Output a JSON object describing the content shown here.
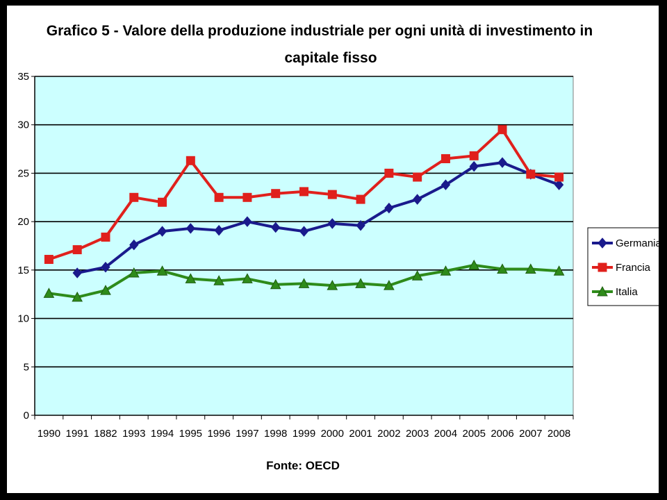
{
  "chart_data": {
    "type": "line",
    "title_line1": "Grafico 5 - Valore della produzione industriale per ogni unità di investimento in",
    "title_line2": "capitale fisso",
    "source": "Fonte: OECD",
    "categories": [
      "1990",
      "1991",
      "1882",
      "1993",
      "1994",
      "1995",
      "1996",
      "1997",
      "1998",
      "1999",
      "2000",
      "2001",
      "2002",
      "2003",
      "2004",
      "2005",
      "2006",
      "2007",
      "2008"
    ],
    "ylim": [
      0,
      35
    ],
    "yticks": [
      "0",
      "5",
      "10",
      "15",
      "20",
      "25",
      "30",
      "35"
    ],
    "grid": true,
    "legend_position": "right",
    "series": [
      {
        "name": "Germania",
        "color": "#1a1a8c",
        "marker": "diamond",
        "values": [
          null,
          14.7,
          15.3,
          17.6,
          19.0,
          19.3,
          19.1,
          20.0,
          19.4,
          19.0,
          19.8,
          19.6,
          21.4,
          22.3,
          23.8,
          25.7,
          26.1,
          24.9,
          23.8
        ]
      },
      {
        "name": "Francia",
        "color": "#e0201c",
        "marker": "square",
        "values": [
          16.1,
          17.1,
          18.4,
          22.5,
          22.0,
          26.3,
          22.5,
          22.5,
          22.9,
          23.1,
          22.8,
          22.3,
          25.0,
          24.6,
          26.5,
          26.8,
          29.5,
          24.9,
          24.6
        ]
      },
      {
        "name": "Italia",
        "color": "#2e8b1a",
        "marker": "triangle",
        "values": [
          12.6,
          12.2,
          12.9,
          14.7,
          14.9,
          14.1,
          13.9,
          14.1,
          13.5,
          13.6,
          13.4,
          13.6,
          13.4,
          14.4,
          14.9,
          15.5,
          15.1,
          15.1,
          14.9
        ]
      }
    ]
  }
}
